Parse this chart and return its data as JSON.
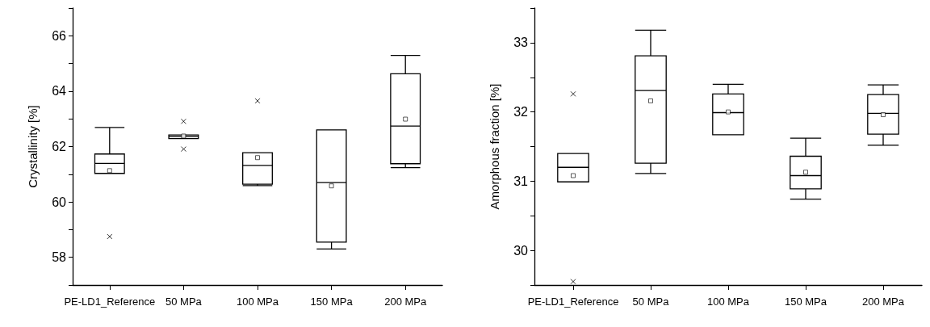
{
  "chart_data": [
    {
      "type": "box",
      "ylabel": "Crystallinity [%]",
      "categories": [
        "PE-LD1_Reference",
        "50 MPa",
        "100 MPa",
        "150 MPa",
        "200 MPa"
      ],
      "ylim": [
        57,
        67
      ],
      "yticks": [
        {
          "value": 57,
          "label": null
        },
        58,
        {
          "value": 59,
          "label": null
        },
        60,
        {
          "value": 61,
          "label": null
        },
        62,
        {
          "value": 63,
          "label": null
        },
        64,
        {
          "value": 65,
          "label": null
        },
        66,
        {
          "value": 67,
          "label": null
        }
      ],
      "series": [
        {
          "color": "#000000",
          "boxes": [
            {
              "low": 61.03,
              "q1": 61.03,
              "median": 61.39,
              "q3": 61.73,
              "high": 62.69,
              "mean": 61.13,
              "outliers": [
                58.75
              ]
            },
            {
              "low": 62.29,
              "q1": 62.29,
              "median": 62.36,
              "q3": 62.42,
              "high": 62.42,
              "mean": 62.38,
              "outliers": [
                62.91,
                61.91
              ]
            },
            {
              "low": 60.59,
              "q1": 60.64,
              "median": 61.32,
              "q3": 61.78,
              "high": 61.78,
              "mean": 61.6,
              "outliers": [
                63.65
              ]
            },
            {
              "low": 58.3,
              "q1": 58.55,
              "median": 60.7,
              "q3": 62.6,
              "high": 62.6,
              "mean": 60.58
            },
            {
              "low": 61.24,
              "q1": 61.38,
              "median": 62.74,
              "q3": 64.63,
              "high": 65.29,
              "mean": 62.99
            }
          ]
        }
      ]
    },
    {
      "type": "box",
      "ylabel": "Amorphous fraction [%]",
      "categories": [
        "PE-LD1_Reference",
        "50 MPa",
        "100 MPa",
        "150 MPa",
        "200 MPa"
      ],
      "ylim": [
        29.5,
        33.5
      ],
      "yticks": [
        {
          "value": 29.5,
          "label": null
        },
        30,
        {
          "value": 30.5,
          "label": null
        },
        31,
        {
          "value": 31.5,
          "label": null
        },
        32,
        {
          "value": 32.5,
          "label": null
        },
        33,
        {
          "value": 33.5,
          "label": null
        }
      ],
      "series": [
        {
          "color": "#000000",
          "boxes": [
            {
              "low": 30.99,
              "q1": 30.99,
              "median": 31.2,
              "q3": 31.4,
              "high": 31.4,
              "mean": 31.08,
              "outliers": [
                32.26,
                29.55
              ]
            },
            {
              "low": 31.11,
              "q1": 31.26,
              "median": 32.31,
              "q3": 32.81,
              "high": 33.18,
              "mean": 32.16
            },
            {
              "low": 31.67,
              "q1": 31.67,
              "median": 31.99,
              "q3": 32.26,
              "high": 32.4,
              "mean": 32.0
            },
            {
              "low": 30.74,
              "q1": 30.89,
              "median": 31.08,
              "q3": 31.36,
              "high": 31.62,
              "mean": 31.13
            },
            {
              "low": 31.52,
              "q1": 31.68,
              "median": 31.98,
              "q3": 32.25,
              "high": 32.39,
              "mean": 31.96
            }
          ]
        }
      ]
    }
  ]
}
